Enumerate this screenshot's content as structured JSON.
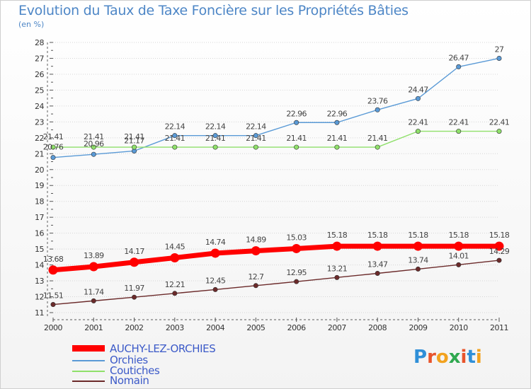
{
  "header": {
    "title": "Evolution du Taux de Taxe Foncière sur les Propriétés Bâties",
    "unit": "(en %)"
  },
  "colors": {
    "auchy": "#ff0000",
    "orchies": "#5a9ad6",
    "coutiches": "#8fe06a",
    "nomain": "#6b2a2a"
  },
  "chart_data": {
    "type": "line",
    "title": "Evolution du Taux de Taxe Foncière sur les Propriétés Bâties",
    "ylabel": "(en %)",
    "xlabel": "",
    "ylim": [
      11,
      28
    ],
    "yticks": [
      "11",
      "12",
      "13",
      "14",
      "15",
      "16",
      "17",
      "18",
      "19",
      "20",
      "21",
      "22",
      "23",
      "24",
      "25",
      "26",
      "27",
      "28"
    ],
    "categories": [
      "2000",
      "2001",
      "2002",
      "2003",
      "2004",
      "2005",
      "2006",
      "2007",
      "2008",
      "2009",
      "2010",
      "2011"
    ],
    "series": [
      {
        "name": "AUCHY-LEZ-ORCHIES",
        "color": "#ff0000",
        "values": [
          13.68,
          13.89,
          14.17,
          14.45,
          14.74,
          14.89,
          15.03,
          15.18,
          15.18,
          15.18,
          15.18,
          15.18
        ],
        "labels": [
          "13.68",
          "13.89",
          "14.17",
          "14.45",
          "14.74",
          "14.89",
          "15.03",
          "15.18",
          "15.18",
          "15.18",
          "15.18",
          "15.18"
        ]
      },
      {
        "name": "Orchies",
        "color": "#5a9ad6",
        "values": [
          20.76,
          20.96,
          21.17,
          22.14,
          22.14,
          22.14,
          22.96,
          22.96,
          23.76,
          24.47,
          26.47,
          27
        ],
        "labels": [
          "20.76",
          "20.96",
          "21.17",
          "22.14",
          "22.14",
          "22.14",
          "22.96",
          "22.96",
          "23.76",
          "24.47",
          "26.47",
          "27"
        ]
      },
      {
        "name": "Coutiches",
        "color": "#8fe06a",
        "values": [
          21.41,
          21.41,
          21.41,
          21.41,
          21.41,
          21.41,
          21.41,
          21.41,
          21.41,
          22.41,
          22.41,
          22.41
        ],
        "labels": [
          "21.41",
          "21.41",
          "21.41",
          "21.41",
          "21.41",
          "21.41",
          "21.41",
          "21.41",
          "21.41",
          "22.41",
          "22.41",
          "22.41"
        ]
      },
      {
        "name": "Nomain",
        "color": "#6b2a2a",
        "values": [
          11.51,
          11.74,
          11.97,
          12.21,
          12.45,
          12.7,
          12.95,
          13.21,
          13.47,
          13.74,
          14.01,
          14.29
        ],
        "labels": [
          "11.51",
          "11.74",
          "11.97",
          "12.21",
          "12.45",
          "12.7",
          "12.95",
          "13.21",
          "13.47",
          "13.74",
          "14.01",
          "14.29"
        ]
      }
    ]
  },
  "legend": {
    "items": [
      "AUCHY-LEZ-ORCHIES",
      "Orchies",
      "Coutiches",
      "Nomain"
    ]
  },
  "logo": {
    "text": "Proxiti"
  }
}
